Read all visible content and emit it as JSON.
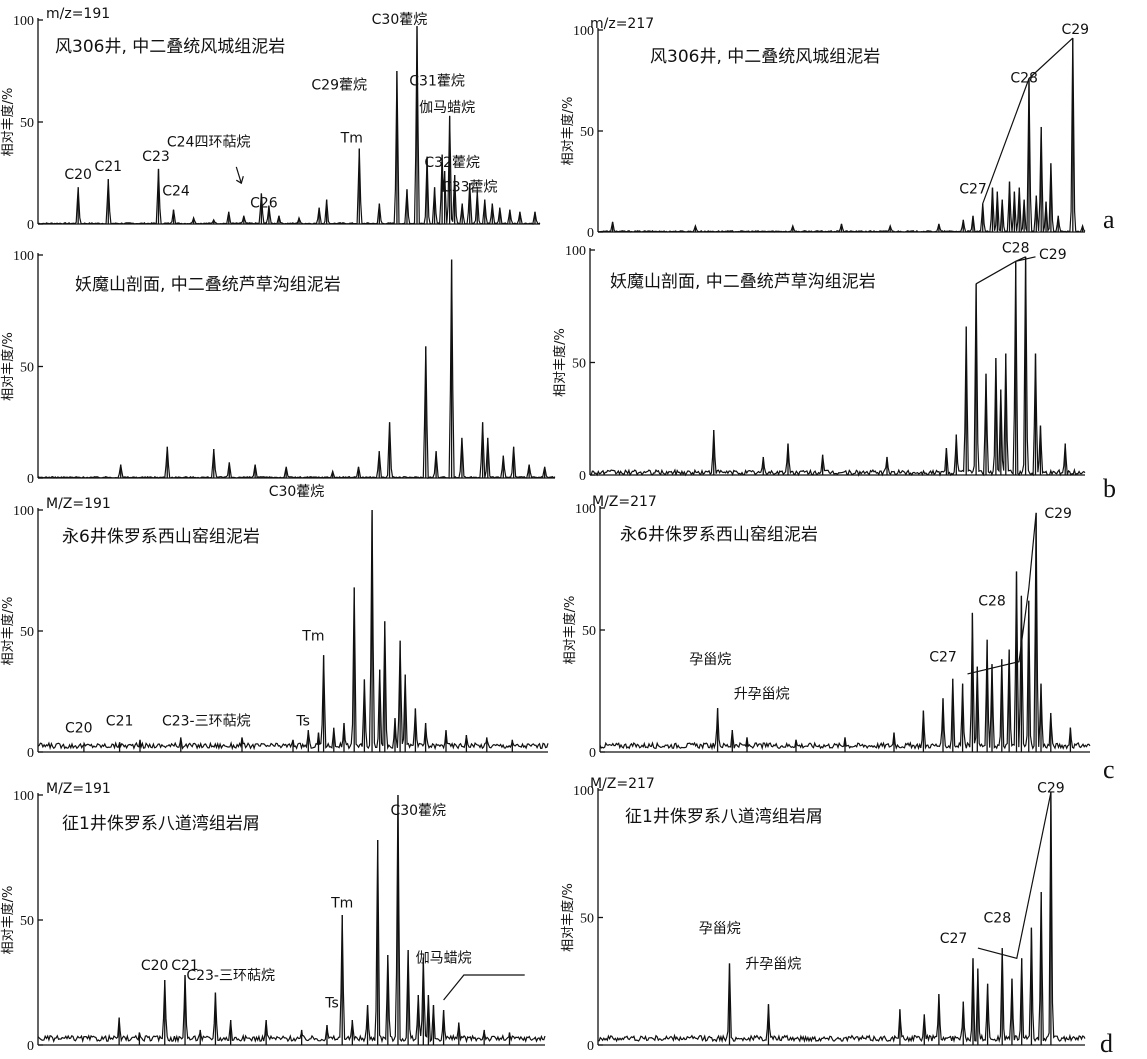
{
  "chart_data": [
    {
      "id": "a-left",
      "type": "line",
      "mz_label": "m/z=191",
      "title": "风306井, 中二叠统风城组泥岩",
      "ylabel": "相对丰度/%",
      "yticks": [
        "0",
        "50",
        "100"
      ],
      "ylim": [
        0,
        100
      ],
      "peaks": [
        [
          0.08,
          18
        ],
        [
          0.14,
          22
        ],
        [
          0.24,
          27
        ],
        [
          0.27,
          7
        ],
        [
          0.31,
          3
        ],
        [
          0.35,
          2
        ],
        [
          0.38,
          6
        ],
        [
          0.41,
          4
        ],
        [
          0.445,
          15
        ],
        [
          0.46,
          9
        ],
        [
          0.48,
          4
        ],
        [
          0.52,
          3
        ],
        [
          0.56,
          8
        ],
        [
          0.575,
          12
        ],
        [
          0.64,
          37
        ],
        [
          0.68,
          10
        ],
        [
          0.715,
          75
        ],
        [
          0.735,
          17
        ],
        [
          0.755,
          97
        ],
        [
          0.775,
          33
        ],
        [
          0.79,
          18
        ],
        [
          0.805,
          34
        ],
        [
          0.81,
          26
        ],
        [
          0.82,
          53
        ],
        [
          0.83,
          24
        ],
        [
          0.845,
          10
        ],
        [
          0.86,
          20
        ],
        [
          0.875,
          16
        ],
        [
          0.89,
          12
        ],
        [
          0.905,
          10
        ],
        [
          0.92,
          8
        ],
        [
          0.94,
          7
        ],
        [
          0.96,
          6
        ],
        [
          0.99,
          6
        ]
      ],
      "labels": [
        {
          "text": "C20",
          "x": 0.08,
          "y": 22
        },
        {
          "text": "C21",
          "x": 0.14,
          "y": 26
        },
        {
          "text": "C23",
          "x": 0.235,
          "y": 31
        },
        {
          "text": "C24",
          "x": 0.275,
          "y": 14
        },
        {
          "text": "C24四环萜烷",
          "x": 0.34,
          "y": 38
        },
        {
          "text": "C26",
          "x": 0.45,
          "y": 8
        },
        {
          "text": "Tm",
          "x": 0.625,
          "y": 40
        },
        {
          "text": "C29藿烷",
          "x": 0.6,
          "y": 66
        },
        {
          "text": "C30藿烷",
          "x": 0.72,
          "y": 98
        },
        {
          "text": "C31藿烷",
          "x": 0.795,
          "y": 68
        },
        {
          "text": "伽马蜡烷",
          "x": 0.815,
          "y": 55
        },
        {
          "text": "C32藿烷",
          "x": 0.825,
          "y": 28
        },
        {
          "text": "C33藿烷",
          "x": 0.86,
          "y": 16
        }
      ]
    },
    {
      "id": "a-right",
      "type": "line",
      "mz_label": "m/z=217",
      "title": "风306井, 中二叠统风城组泥岩",
      "ylabel": "相对丰度/%",
      "yticks": [
        "0",
        "50",
        "100"
      ],
      "ylim": [
        0,
        100
      ],
      "peaks": [
        [
          0.03,
          5
        ],
        [
          0.2,
          3
        ],
        [
          0.4,
          3
        ],
        [
          0.5,
          4
        ],
        [
          0.6,
          3
        ],
        [
          0.7,
          4
        ],
        [
          0.75,
          6
        ],
        [
          0.77,
          8
        ],
        [
          0.79,
          14
        ],
        [
          0.81,
          22
        ],
        [
          0.82,
          20
        ],
        [
          0.83,
          16
        ],
        [
          0.845,
          25
        ],
        [
          0.855,
          20
        ],
        [
          0.865,
          22
        ],
        [
          0.875,
          16
        ],
        [
          0.885,
          76
        ],
        [
          0.9,
          18
        ],
        [
          0.91,
          52
        ],
        [
          0.92,
          15
        ],
        [
          0.93,
          34
        ],
        [
          0.945,
          8
        ],
        [
          0.975,
          96
        ],
        [
          0.995,
          3
        ]
      ],
      "labels": [
        {
          "text": "C27",
          "x": 0.77,
          "y": 19
        },
        {
          "text": "C28",
          "x": 0.875,
          "y": 74
        },
        {
          "text": "C29",
          "x": 0.98,
          "y": 98
        }
      ],
      "envelope": [
        [
          0.79,
          14
        ],
        [
          0.885,
          76
        ],
        [
          0.975,
          96
        ],
        [
          0.885,
          76
        ]
      ]
    },
    {
      "id": "b-left",
      "type": "line",
      "mz_label": "",
      "title": "妖魔山剖面, 中二叠统芦草沟组泥岩",
      "ylabel": "相对丰度/%",
      "yticks": [
        "0",
        "50",
        "100"
      ],
      "ylim": [
        0,
        100
      ],
      "peaks": [
        [
          0.16,
          6
        ],
        [
          0.25,
          14
        ],
        [
          0.34,
          13
        ],
        [
          0.37,
          7
        ],
        [
          0.42,
          6
        ],
        [
          0.48,
          5
        ],
        [
          0.57,
          3
        ],
        [
          0.62,
          5
        ],
        [
          0.66,
          12
        ],
        [
          0.68,
          25
        ],
        [
          0.75,
          59
        ],
        [
          0.77,
          12
        ],
        [
          0.8,
          98
        ],
        [
          0.82,
          18
        ],
        [
          0.86,
          25
        ],
        [
          0.87,
          18
        ],
        [
          0.9,
          10
        ],
        [
          0.92,
          14
        ],
        [
          0.95,
          6
        ],
        [
          0.98,
          5
        ]
      ],
      "labels": [
        {
          "text": "C30藿烷",
          "x": 0.5,
          "y": -8
        }
      ]
    },
    {
      "id": "b-right",
      "type": "line",
      "mz_label": "",
      "title": "妖魔山剖面, 中二叠统芦草沟组泥岩",
      "ylabel": "相对丰度/%",
      "yticks": [
        "0",
        "50",
        "100"
      ],
      "ylim": [
        0,
        100
      ],
      "peaks": [
        [
          0.25,
          20
        ],
        [
          0.35,
          8
        ],
        [
          0.4,
          14
        ],
        [
          0.47,
          9
        ],
        [
          0.6,
          8
        ],
        [
          0.72,
          12
        ],
        [
          0.74,
          18
        ],
        [
          0.76,
          66
        ],
        [
          0.78,
          85
        ],
        [
          0.8,
          45
        ],
        [
          0.82,
          52
        ],
        [
          0.83,
          38
        ],
        [
          0.84,
          54
        ],
        [
          0.86,
          95
        ],
        [
          0.88,
          97
        ],
        [
          0.9,
          54
        ],
        [
          0.91,
          22
        ],
        [
          0.96,
          14
        ]
      ],
      "labels": [
        {
          "text": "C28",
          "x": 0.86,
          "y": 99
        },
        {
          "text": "C29",
          "x": 0.935,
          "y": 96
        }
      ],
      "envelope": [
        [
          0.78,
          85
        ],
        [
          0.86,
          95
        ],
        [
          0.88,
          97
        ],
        [
          0.86,
          95
        ],
        [
          0.9,
          97
        ]
      ]
    },
    {
      "id": "c-left",
      "type": "line",
      "mz_label": "M/Z=191",
      "title": "永6井侏罗系西山窑组泥岩",
      "ylabel": "相对丰度/%",
      "yticks": [
        "0",
        "50",
        "100"
      ],
      "ylim": [
        0,
        100
      ],
      "peaks": [
        [
          0.09,
          3
        ],
        [
          0.16,
          4
        ],
        [
          0.2,
          5
        ],
        [
          0.28,
          6
        ],
        [
          0.4,
          6
        ],
        [
          0.5,
          5
        ],
        [
          0.53,
          9
        ],
        [
          0.55,
          8
        ],
        [
          0.56,
          40
        ],
        [
          0.58,
          10
        ],
        [
          0.6,
          12
        ],
        [
          0.62,
          68
        ],
        [
          0.64,
          30
        ],
        [
          0.655,
          100
        ],
        [
          0.67,
          34
        ],
        [
          0.68,
          54
        ],
        [
          0.7,
          14
        ],
        [
          0.71,
          46
        ],
        [
          0.72,
          32
        ],
        [
          0.74,
          18
        ],
        [
          0.76,
          12
        ],
        [
          0.8,
          9
        ],
        [
          0.84,
          7
        ],
        [
          0.88,
          6
        ],
        [
          0.93,
          5
        ]
      ],
      "labels": [
        {
          "text": "C20",
          "x": 0.08,
          "y": 8
        },
        {
          "text": "C21",
          "x": 0.16,
          "y": 11
        },
        {
          "text": "C23-三环萜烷",
          "x": 0.33,
          "y": 11
        },
        {
          "text": "Tm",
          "x": 0.54,
          "y": 46
        },
        {
          "text": "Ts",
          "x": 0.52,
          "y": 11
        }
      ]
    },
    {
      "id": "c-right",
      "type": "line",
      "mz_label": "M/Z=217",
      "title": "永6井侏罗系西山窑组泥岩",
      "ylabel": "相对丰度/%",
      "yticks": [
        "0",
        "50",
        "100"
      ],
      "ylim": [
        0,
        100
      ],
      "peaks": [
        [
          0.24,
          18
        ],
        [
          0.27,
          9
        ],
        [
          0.3,
          6
        ],
        [
          0.4,
          5
        ],
        [
          0.5,
          6
        ],
        [
          0.6,
          8
        ],
        [
          0.66,
          17
        ],
        [
          0.7,
          22
        ],
        [
          0.72,
          30
        ],
        [
          0.74,
          28
        ],
        [
          0.76,
          57
        ],
        [
          0.77,
          35
        ],
        [
          0.79,
          46
        ],
        [
          0.8,
          36
        ],
        [
          0.82,
          38
        ],
        [
          0.835,
          42
        ],
        [
          0.85,
          74
        ],
        [
          0.86,
          64
        ],
        [
          0.875,
          62
        ],
        [
          0.89,
          98
        ],
        [
          0.9,
          28
        ],
        [
          0.92,
          16
        ],
        [
          0.96,
          10
        ]
      ],
      "labels": [
        {
          "text": "孕甾烷",
          "x": 0.225,
          "y": 36
        },
        {
          "text": "升孕甾烷",
          "x": 0.33,
          "y": 22
        },
        {
          "text": "C27",
          "x": 0.7,
          "y": 37
        },
        {
          "text": "C28",
          "x": 0.8,
          "y": 60
        },
        {
          "text": "C29",
          "x": 0.935,
          "y": 96
        }
      ],
      "envelope": [
        [
          0.75,
          32
        ],
        [
          0.855,
          37
        ],
        [
          0.875,
          67
        ],
        [
          0.89,
          98
        ]
      ]
    },
    {
      "id": "d-left",
      "type": "line",
      "mz_label": "M/Z=191",
      "title": "征1井侏罗系八道湾组岩屑",
      "ylabel": "相对丰度/%",
      "yticks": [
        "0",
        "50",
        "100"
      ],
      "ylim": [
        0,
        100
      ],
      "peaks": [
        [
          0.16,
          11
        ],
        [
          0.2,
          5
        ],
        [
          0.25,
          26
        ],
        [
          0.29,
          28
        ],
        [
          0.32,
          6
        ],
        [
          0.35,
          21
        ],
        [
          0.38,
          10
        ],
        [
          0.45,
          10
        ],
        [
          0.52,
          6
        ],
        [
          0.57,
          8
        ],
        [
          0.6,
          52
        ],
        [
          0.62,
          10
        ],
        [
          0.65,
          16
        ],
        [
          0.67,
          82
        ],
        [
          0.69,
          36
        ],
        [
          0.71,
          100
        ],
        [
          0.73,
          38
        ],
        [
          0.75,
          20
        ],
        [
          0.76,
          35
        ],
        [
          0.77,
          20
        ],
        [
          0.78,
          16
        ],
        [
          0.8,
          14
        ],
        [
          0.83,
          9
        ],
        [
          0.88,
          6
        ],
        [
          0.93,
          5
        ]
      ],
      "labels": [
        {
          "text": "C20",
          "x": 0.23,
          "y": 30
        },
        {
          "text": "C21",
          "x": 0.29,
          "y": 30
        },
        {
          "text": "C23-三环萜烷",
          "x": 0.38,
          "y": 26
        },
        {
          "text": "Tm",
          "x": 0.6,
          "y": 55
        },
        {
          "text": "Ts",
          "x": 0.58,
          "y": 15
        },
        {
          "text": "C30藿烷",
          "x": 0.75,
          "y": 92
        },
        {
          "text": "伽马蜡烷",
          "x": 0.8,
          "y": 33
        }
      ]
    },
    {
      "id": "d-right",
      "type": "line",
      "mz_label": "M/Z=217",
      "title": "征1井侏罗系八道湾组岩屑",
      "ylabel": "相对丰度/%",
      "yticks": [
        "0",
        "50",
        "100"
      ],
      "ylim": [
        0,
        100
      ],
      "peaks": [
        [
          0.27,
          32
        ],
        [
          0.35,
          16
        ],
        [
          0.62,
          14
        ],
        [
          0.67,
          12
        ],
        [
          0.7,
          20
        ],
        [
          0.75,
          17
        ],
        [
          0.77,
          34
        ],
        [
          0.78,
          30
        ],
        [
          0.8,
          24
        ],
        [
          0.83,
          38
        ],
        [
          0.85,
          26
        ],
        [
          0.87,
          34
        ],
        [
          0.89,
          46
        ],
        [
          0.91,
          60
        ],
        [
          0.93,
          99
        ]
      ],
      "labels": [
        {
          "text": "孕甾烷",
          "x": 0.25,
          "y": 44
        },
        {
          "text": "升孕甾烷",
          "x": 0.36,
          "y": 30
        },
        {
          "text": "C27",
          "x": 0.73,
          "y": 40
        },
        {
          "text": "C28",
          "x": 0.82,
          "y": 48
        },
        {
          "text": "C29",
          "x": 0.93,
          "y": 99
        }
      ],
      "envelope": [
        [
          0.78,
          38
        ],
        [
          0.86,
          34
        ],
        [
          0.93,
          99
        ]
      ]
    }
  ],
  "row_letters": [
    "a",
    "b",
    "c",
    "d"
  ]
}
